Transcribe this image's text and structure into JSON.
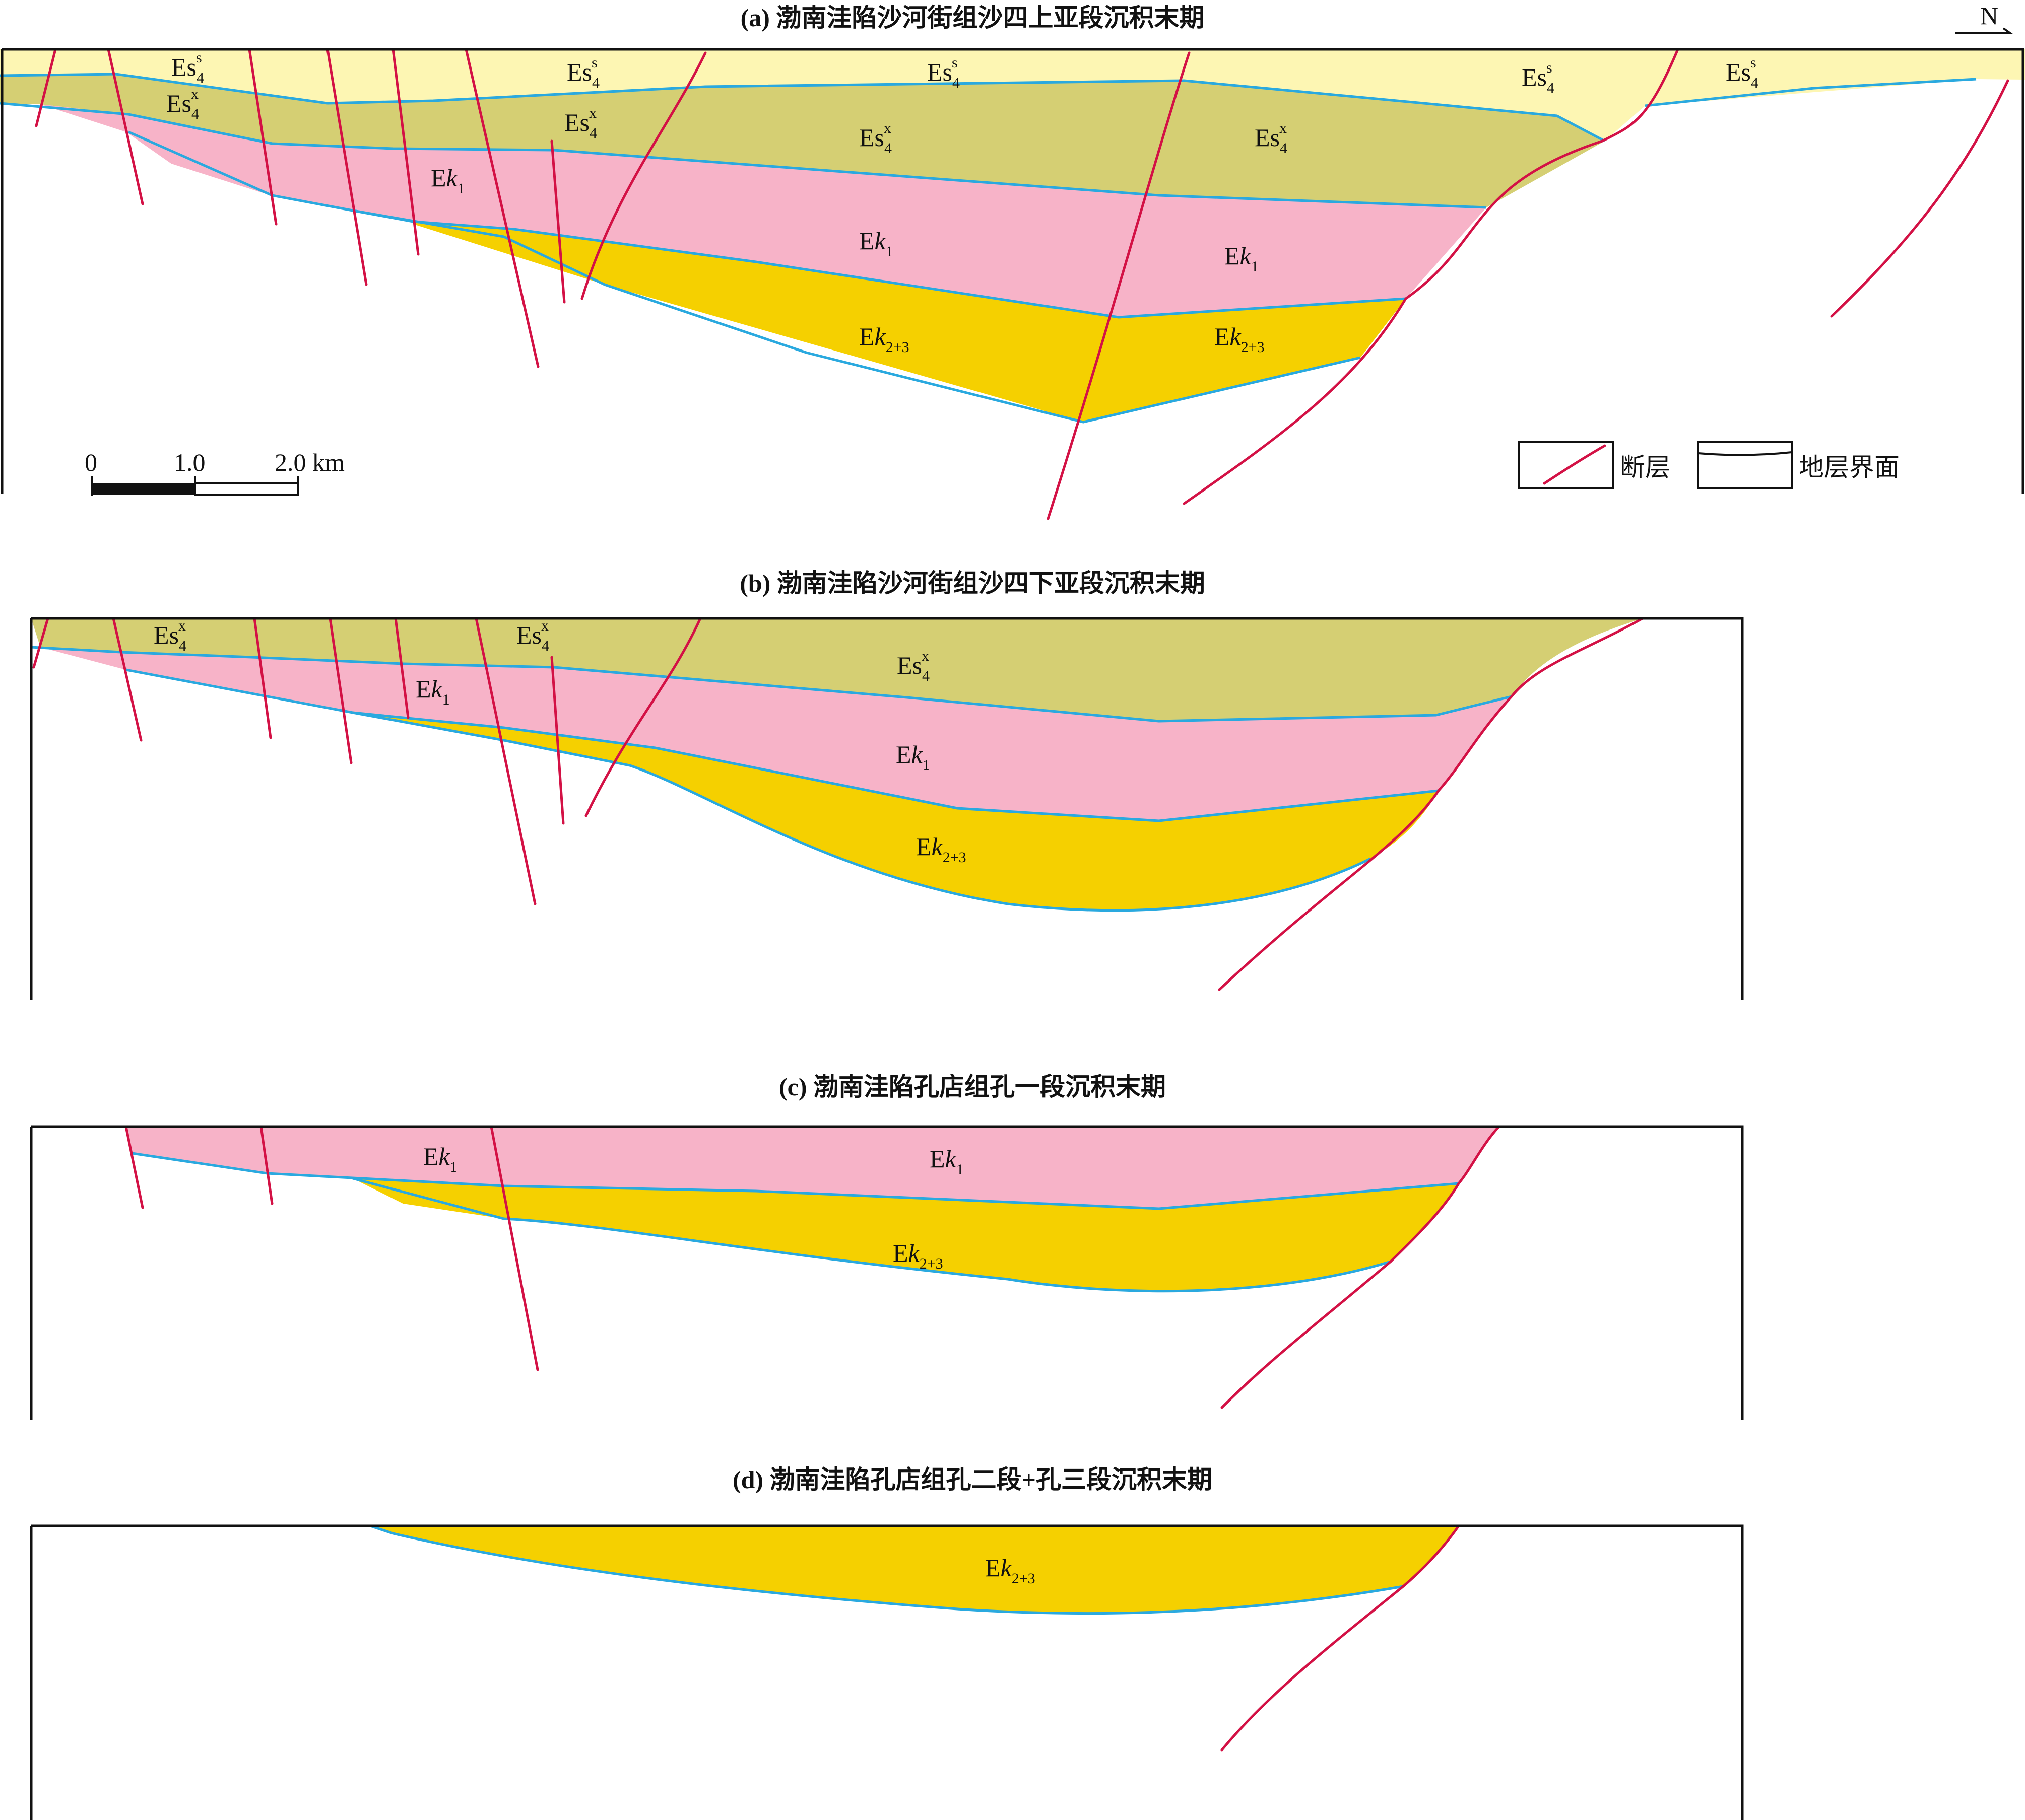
{
  "panels": {
    "a": {
      "title": "(a) 渤南洼陷沙河街组沙四上亚段沉积末期"
    },
    "b": {
      "title": "(b) 渤南洼陷沙河街组沙四下亚段沉积末期"
    },
    "c": {
      "title": "(c) 渤南洼陷孔店组孔一段沉积末期"
    },
    "d": {
      "title": "(d) 渤南洼陷孔店组孔二段+孔三段沉积末期"
    }
  },
  "units": {
    "es4s": {
      "base": "Es",
      "sub": "4",
      "sup": "s"
    },
    "es4x": {
      "base": "Es",
      "sub": "4",
      "sup": "x"
    },
    "ek1": {
      "base": "E",
      "italic": "k",
      "sub": "1"
    },
    "ek23": {
      "base": "E",
      "italic": "k",
      "sub": "2+3"
    }
  },
  "scale_bar": {
    "ticks": [
      "0",
      "1.0",
      "2.0 km"
    ]
  },
  "legend": {
    "fault": "断层",
    "boundary": "地层界面"
  },
  "north_arrow": {
    "label": "N"
  },
  "colors": {
    "es4s": "#fdf6b3",
    "es4x": "#d5cf73",
    "ek1": "#f7b3c8",
    "ek23": "#f5d000",
    "fault": "#d31145",
    "boundary": "#2aa9df"
  }
}
